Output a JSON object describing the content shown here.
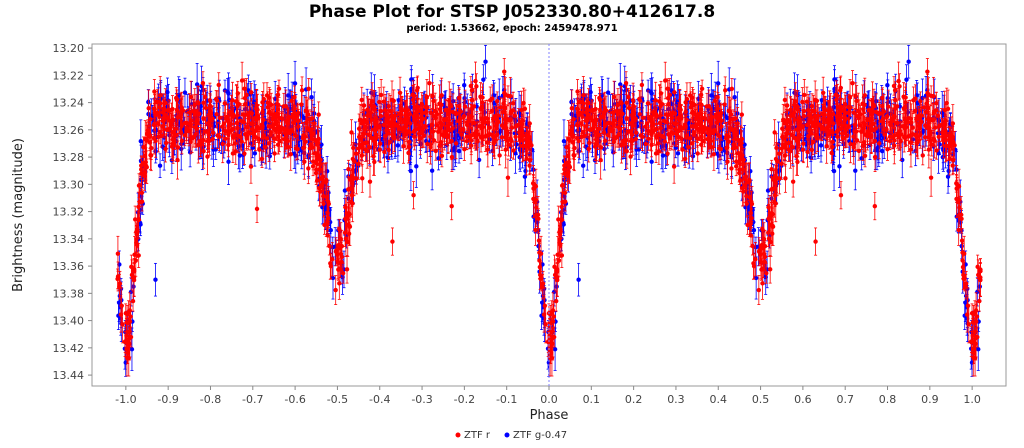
{
  "chart_data": {
    "type": "scatter",
    "title": "Phase Plot for STSP J052330.80+412617.8",
    "subtitle": "period: 1.53662, epoch: 2459478.971",
    "xlabel": "Phase",
    "ylabel": "Brightness (magnitude)",
    "xlim": [
      -1.08,
      1.08
    ],
    "ylim": [
      13.448,
      13.197
    ],
    "y_inverted": true,
    "x_ticks": [
      "-1.0",
      "-0.9",
      "-0.8",
      "-0.7",
      "-0.6",
      "-0.5",
      "-0.4",
      "-0.3",
      "-0.2",
      "-0.1",
      "0.0",
      "0.1",
      "0.2",
      "0.3",
      "0.4",
      "0.5",
      "0.6",
      "0.7",
      "0.8",
      "0.9",
      "1.0"
    ],
    "y_ticks": [
      "13.20",
      "13.22",
      "13.24",
      "13.26",
      "13.28",
      "13.30",
      "13.32",
      "13.34",
      "13.36",
      "13.38",
      "13.40",
      "13.42",
      "13.44"
    ],
    "grid": false,
    "reference_line_x": 0.0,
    "legend_position": "bottom-center",
    "light_curve_model": {
      "baseline": 13.255,
      "primary_eclipse": {
        "phase": 0.0,
        "depth": 0.165,
        "width": 0.022
      },
      "secondary_eclipse": {
        "phase": 0.5,
        "depth": 0.095,
        "width": 0.028
      }
    },
    "series": [
      {
        "name": "ZTF r",
        "color": "#ff0000",
        "count": 900,
        "scatter": 0.02,
        "error": 0.01,
        "outliers": [
          [
            -0.69,
            13.318
          ],
          [
            -0.37,
            13.342
          ],
          [
            -0.32,
            13.308
          ],
          [
            -0.23,
            13.316
          ],
          [
            0.63,
            13.342
          ],
          [
            0.69,
            13.308
          ],
          [
            0.77,
            13.316
          ]
        ]
      },
      {
        "name": "ZTF g-0.47",
        "color": "#0000ff",
        "count": 500,
        "scatter": 0.022,
        "error": 0.012,
        "outliers": [
          [
            -0.93,
            13.37
          ],
          [
            0.07,
            13.37
          ],
          [
            -0.15,
            13.21
          ],
          [
            0.85,
            13.21
          ]
        ]
      }
    ]
  }
}
